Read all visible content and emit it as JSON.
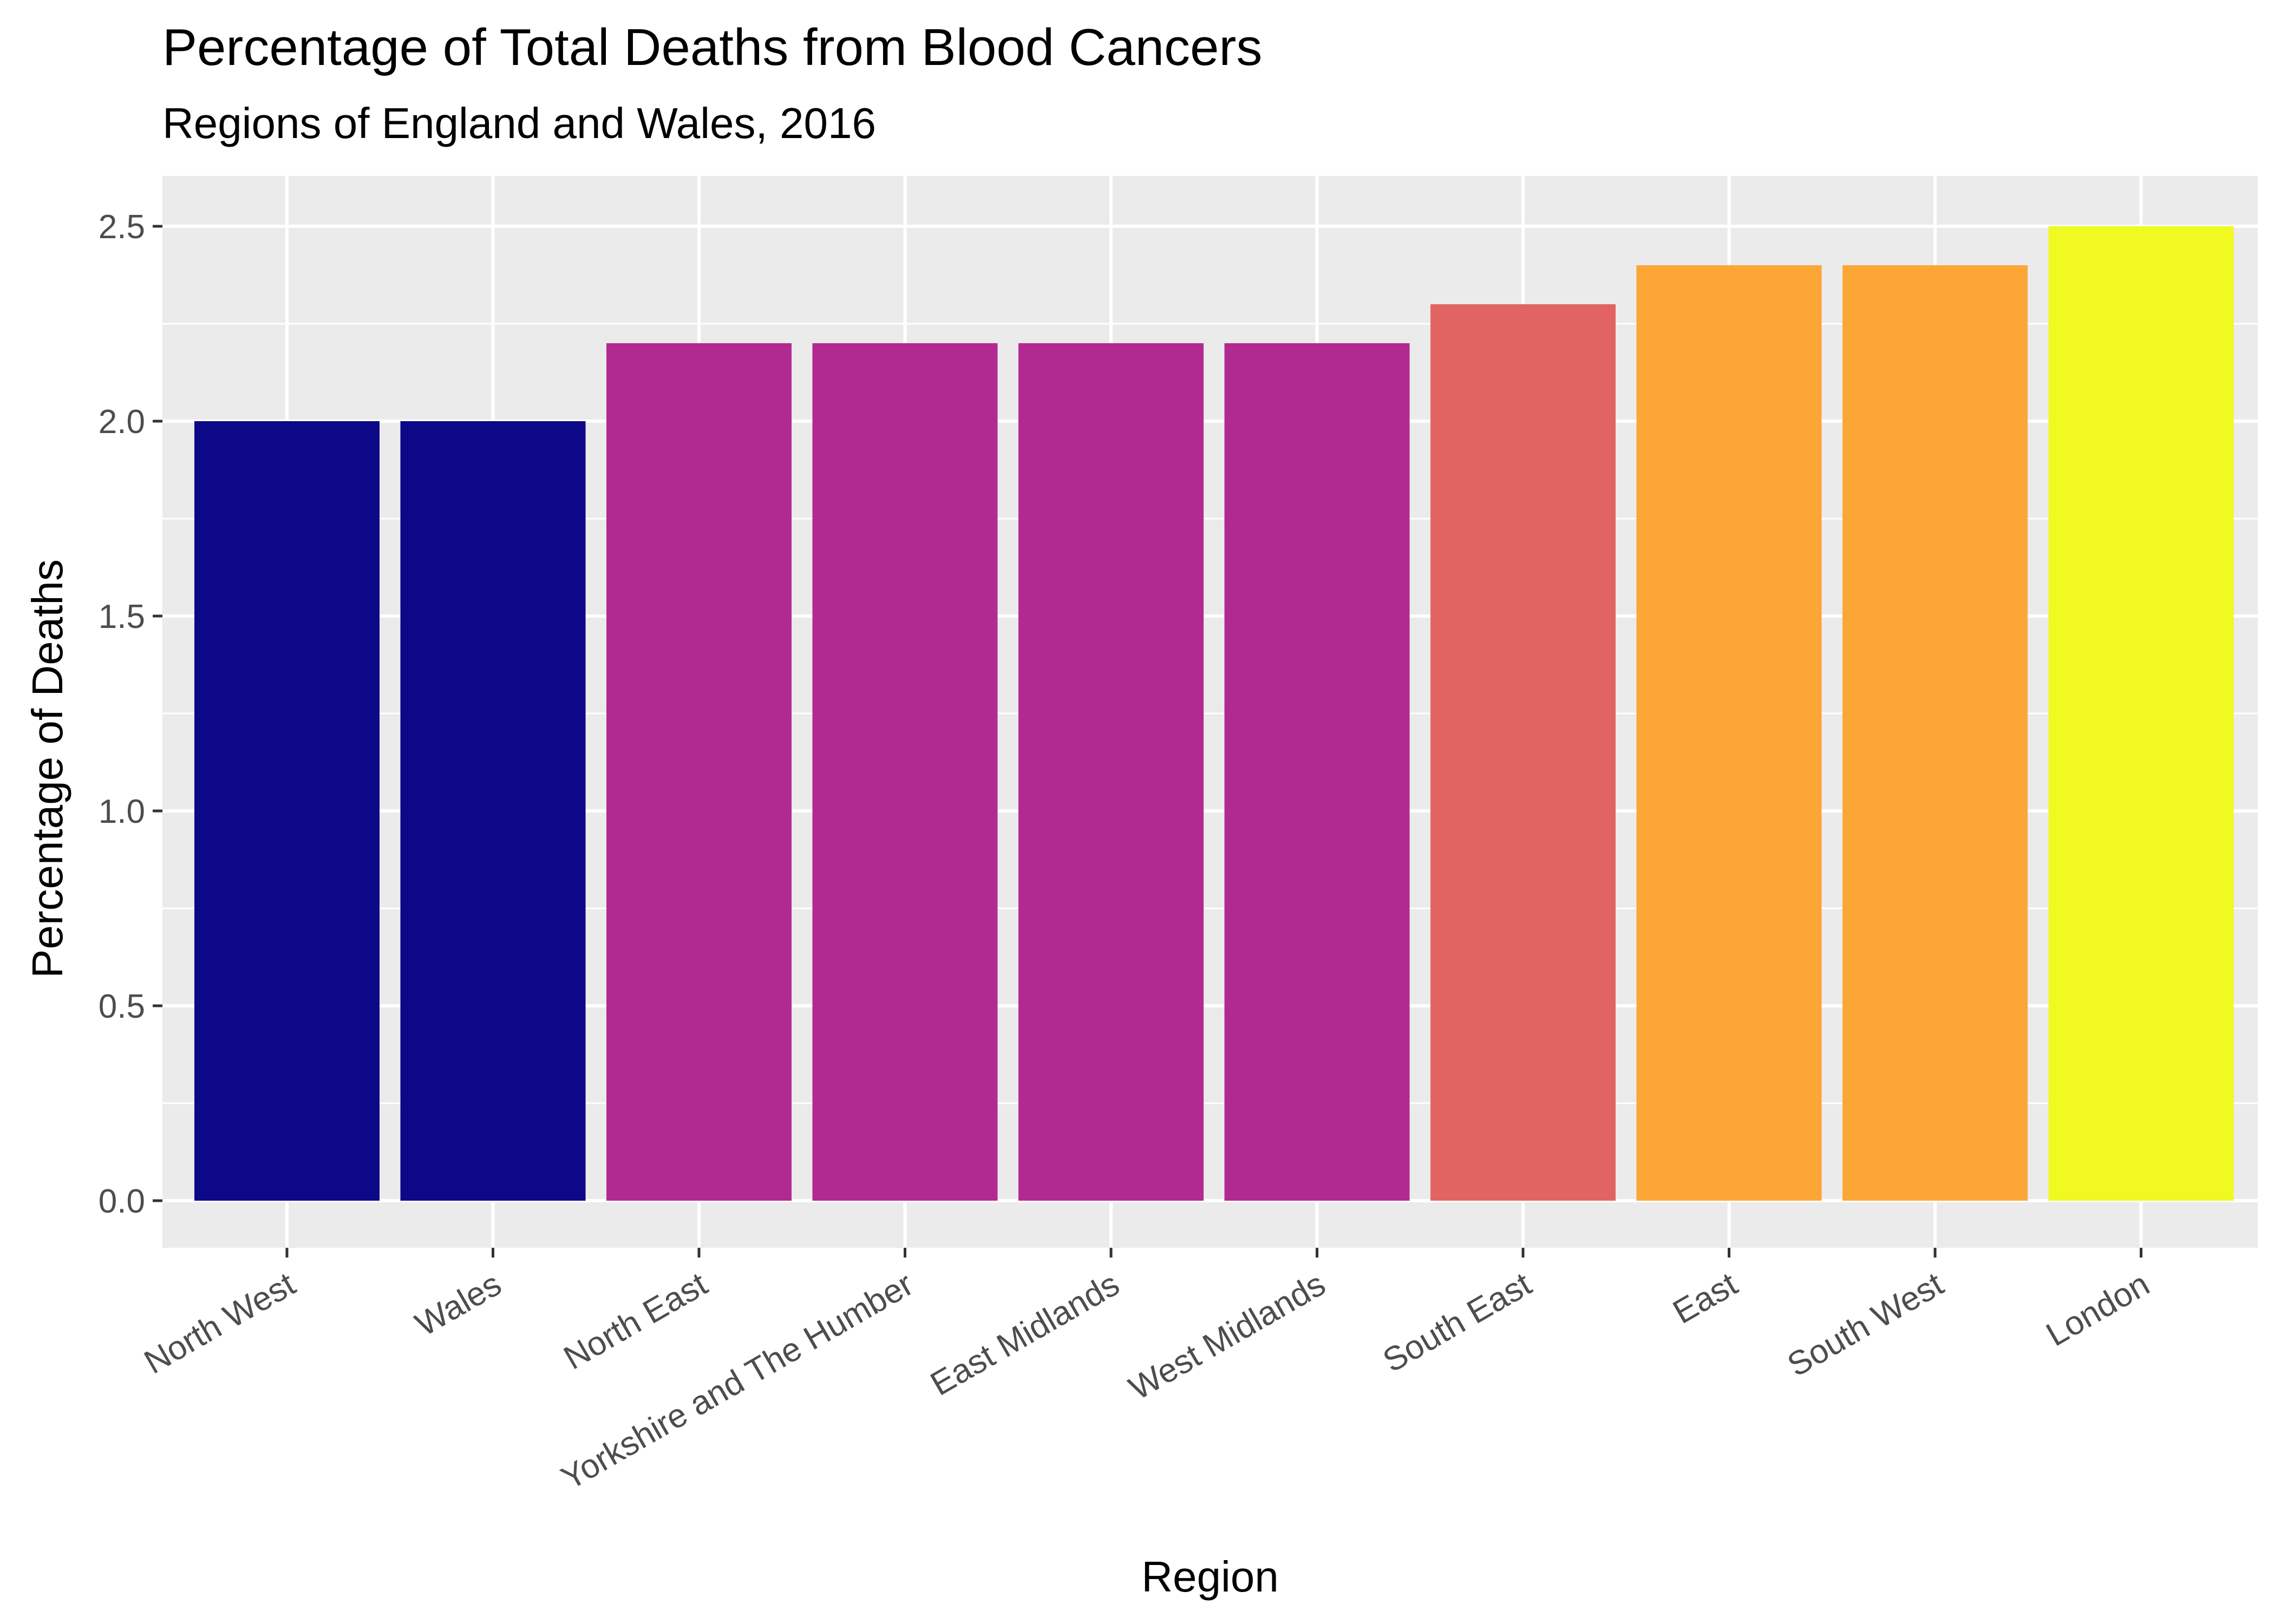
{
  "chart_data": {
    "type": "bar",
    "title": "Percentage of Total Deaths from Blood Cancers",
    "subtitle": "Regions of England and Wales, 2016",
    "xlabel": "Region",
    "ylabel": "Percentage of Deaths",
    "ylim": [
      0,
      2.6
    ],
    "yticks": [
      "0.0",
      "0.5",
      "1.0",
      "1.5",
      "2.0",
      "2.5"
    ],
    "grid": true,
    "legend": "none",
    "categories": [
      "North West",
      "Wales",
      "North East",
      "Yorkshire and The Humber",
      "East Midlands",
      "West Midlands",
      "South East",
      "East",
      "South West",
      "London"
    ],
    "values": [
      2.0,
      2.0,
      2.2,
      2.2,
      2.2,
      2.2,
      2.3,
      2.4,
      2.4,
      2.5
    ],
    "colors": [
      "#0d0887",
      "#0d0887",
      "#b12a90",
      "#b12a90",
      "#b12a90",
      "#b12a90",
      "#e16462",
      "#fca636",
      "#fca636",
      "#f0f921"
    ],
    "panel_color": "#ebebeb",
    "grid_color": "#ffffff"
  }
}
